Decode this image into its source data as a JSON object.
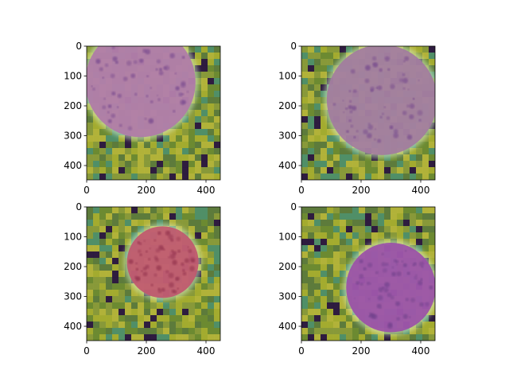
{
  "figure": {
    "panels": [
      {
        "id": "top-left",
        "xticks": [
          "0",
          "200",
          "400"
        ],
        "yticks": [
          "0",
          "100",
          "200",
          "300",
          "400"
        ],
        "xlim": [
          0,
          448
        ],
        "ylim": [
          448,
          0
        ],
        "circle_tint": "#b07aa8",
        "circle_center": [
          180,
          120
        ],
        "circle_radius": 185
      },
      {
        "id": "top-right",
        "xticks": [
          "0",
          "200",
          "400"
        ],
        "yticks": [
          "0",
          "100",
          "200",
          "300",
          "400"
        ],
        "xlim": [
          0,
          448
        ],
        "ylim": [
          448,
          0
        ],
        "circle_tint": "#a27b9e",
        "circle_center": [
          270,
          180
        ],
        "circle_radius": 185
      },
      {
        "id": "bottom-left",
        "xticks": [
          "0",
          "200",
          "400"
        ],
        "yticks": [
          "0",
          "100",
          "200",
          "300",
          "400"
        ],
        "xlim": [
          0,
          448
        ],
        "ylim": [
          448,
          0
        ],
        "circle_tint": "#c0576e",
        "circle_center": [
          255,
          185
        ],
        "circle_radius": 120
      },
      {
        "id": "bottom-right",
        "xticks": [
          "0",
          "200",
          "400"
        ],
        "yticks": [
          "0",
          "100",
          "200",
          "300",
          "400"
        ],
        "xlim": [
          0,
          448
        ],
        "ylim": [
          448,
          0
        ],
        "circle_tint": "#9a4fa8",
        "circle_center": [
          300,
          270
        ],
        "circle_radius": 150
      }
    ],
    "colors": {
      "background_green": "#6d8a32",
      "background_yellow": "#a7ad2f",
      "background_teal": "#4f8f6a",
      "dark_block": "#2b1640",
      "edge_glow": "#d7f0c8"
    }
  }
}
